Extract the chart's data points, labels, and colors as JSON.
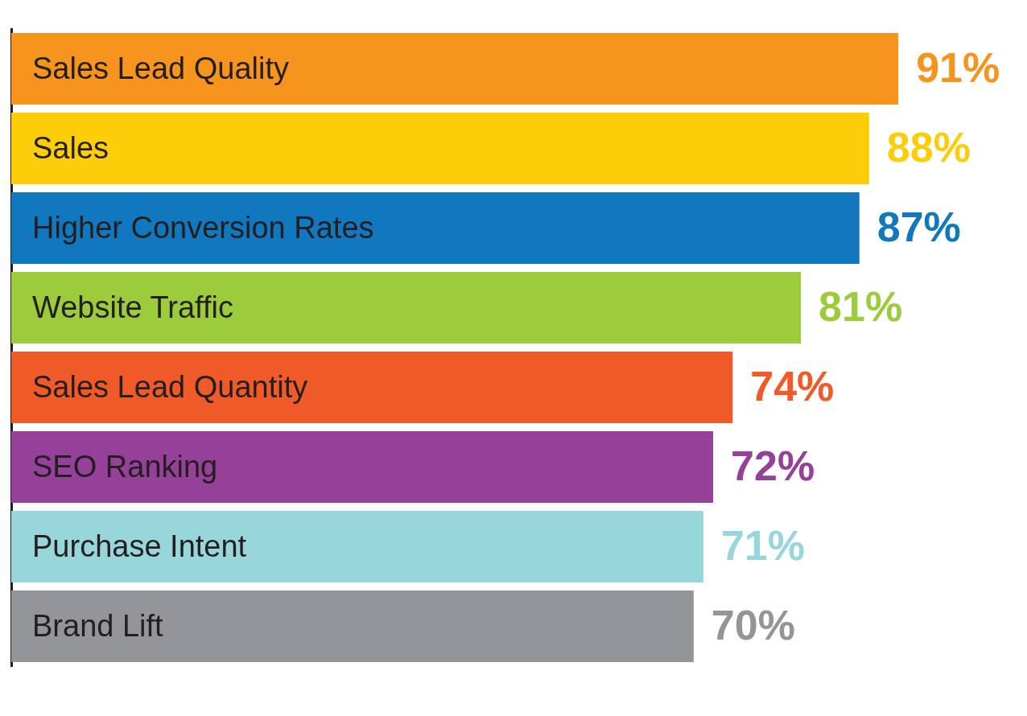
{
  "chart_data": {
    "type": "bar",
    "orientation": "horizontal",
    "categories": [
      "Sales Lead Quality",
      "Sales",
      "Higher Conversion Rates",
      "Website Traffic",
      "Sales Lead Quantity",
      "SEO Ranking",
      "Purchase Intent",
      "Brand Lift"
    ],
    "values": [
      91,
      88,
      87,
      81,
      74,
      72,
      71,
      70
    ],
    "colors": [
      "#f7941d",
      "#fecd0a",
      "#1177bf",
      "#9ccb3b",
      "#f05a28",
      "#954199",
      "#97d6da",
      "#939598"
    ],
    "value_labels": [
      "91%",
      "88%",
      "87%",
      "81%",
      "74%",
      "72%",
      "71%",
      "70%"
    ],
    "grid": false,
    "legend": false,
    "tick_labels": false
  }
}
